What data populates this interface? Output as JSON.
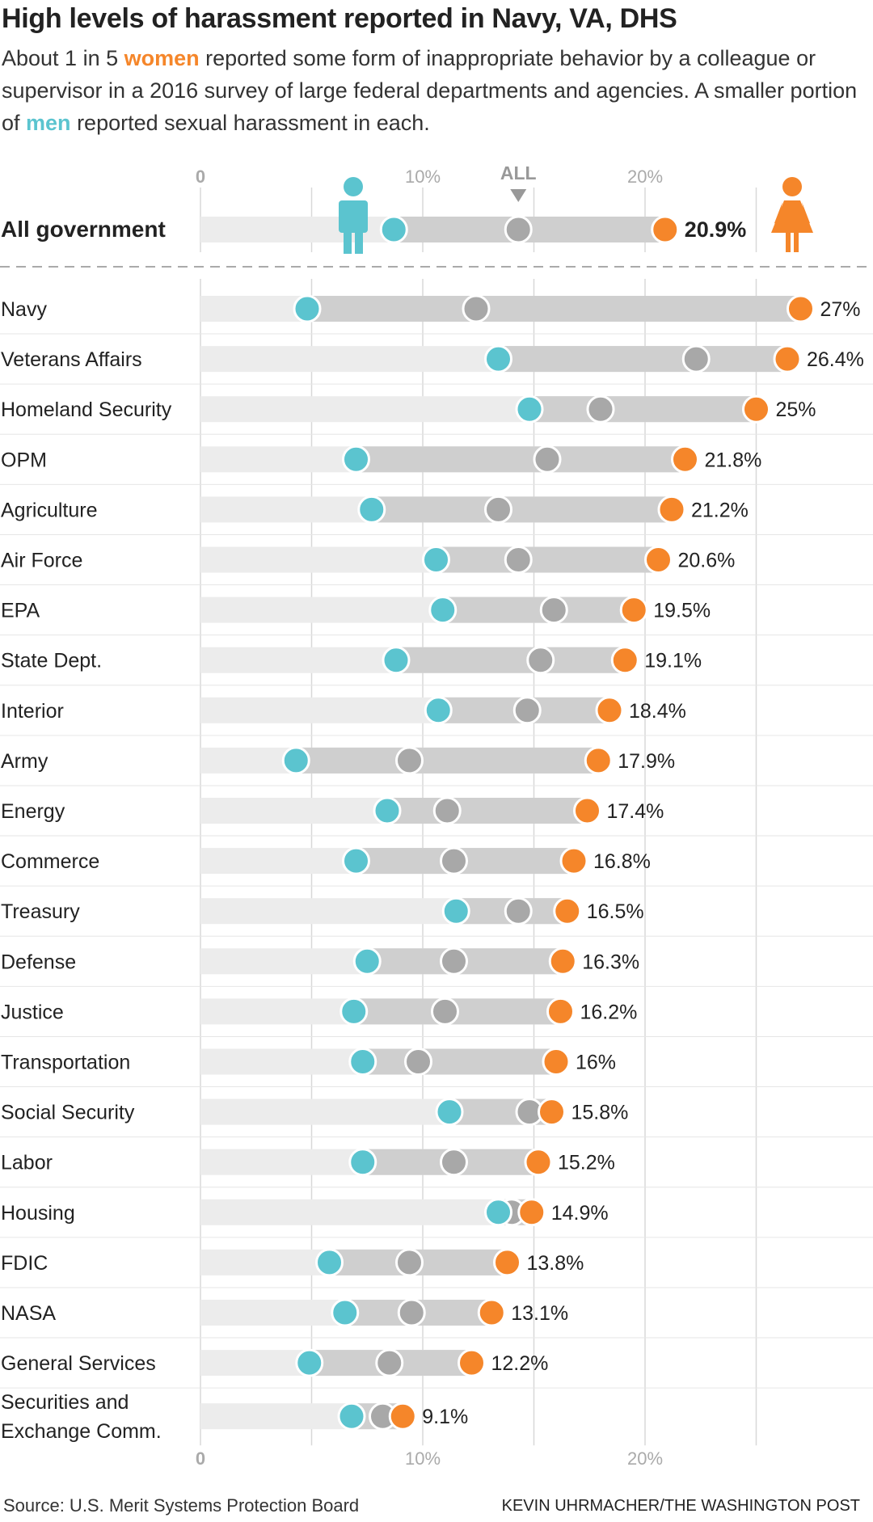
{
  "title": "High levels of harassment reported in Navy, VA, DHS",
  "subtitle": {
    "part1": "About 1 in 5 ",
    "women": "women",
    "part2": " reported some form of inappropriate behavior by a colleague or supervisor in a 2016 survey of large federal departments and agencies. A smaller portion of ",
    "men": "men",
    "part3": " reported sexual harassment in each."
  },
  "colors": {
    "men": "#5bc4cf",
    "women": "#f5862a",
    "all": "#a8a8a8",
    "range_bar": "#cfcfcf",
    "track": "#ececec"
  },
  "icons": {
    "men": "man-icon",
    "women": "woman-icon"
  },
  "chart_data": {
    "type": "dot-range",
    "x_ticks": [
      "0",
      "10%",
      "20%"
    ],
    "x_tick_values": [
      0,
      10,
      20
    ],
    "xlim": [
      0,
      28
    ],
    "all_marker_label": "ALL",
    "summary": {
      "category": "All government",
      "men": 8.7,
      "all": 14.3,
      "women": 20.9,
      "label": "20.9%"
    },
    "rows": [
      {
        "category": "Navy",
        "men": 4.8,
        "all": 12.4,
        "women": 27,
        "label": "27%"
      },
      {
        "category": "Veterans Affairs",
        "men": 13.4,
        "all": 22.3,
        "women": 26.4,
        "label": "26.4%"
      },
      {
        "category": "Homeland Security",
        "men": 14.8,
        "all": 18.0,
        "women": 25,
        "label": "25%"
      },
      {
        "category": "OPM",
        "men": 7.0,
        "all": 15.6,
        "women": 21.8,
        "label": "21.8%"
      },
      {
        "category": "Agriculture",
        "men": 7.7,
        "all": 13.4,
        "women": 21.2,
        "label": "21.2%"
      },
      {
        "category": "Air Force",
        "men": 10.6,
        "all": 14.3,
        "women": 20.6,
        "label": "20.6%"
      },
      {
        "category": "EPA",
        "men": 10.9,
        "all": 15.9,
        "women": 19.5,
        "label": "19.5%"
      },
      {
        "category": "State Dept.",
        "men": 8.8,
        "all": 15.3,
        "women": 19.1,
        "label": "19.1%"
      },
      {
        "category": "Interior",
        "men": 10.7,
        "all": 14.7,
        "women": 18.4,
        "label": "18.4%"
      },
      {
        "category": "Army",
        "men": 4.3,
        "all": 9.4,
        "women": 17.9,
        "label": "17.9%"
      },
      {
        "category": "Energy",
        "men": 8.4,
        "all": 11.1,
        "women": 17.4,
        "label": "17.4%"
      },
      {
        "category": "Commerce",
        "men": 7.0,
        "all": 11.4,
        "women": 16.8,
        "label": "16.8%"
      },
      {
        "category": "Treasury",
        "men": 11.5,
        "all": 14.3,
        "women": 16.5,
        "label": "16.5%"
      },
      {
        "category": "Defense",
        "men": 7.5,
        "all": 11.4,
        "women": 16.3,
        "label": "16.3%"
      },
      {
        "category": "Justice",
        "men": 6.9,
        "all": 11.0,
        "women": 16.2,
        "label": "16.2%"
      },
      {
        "category": "Transportation",
        "men": 7.3,
        "all": 9.8,
        "women": 16,
        "label": "16%"
      },
      {
        "category": "Social Security",
        "men": 11.2,
        "all": 14.8,
        "women": 15.8,
        "label": "15.8%"
      },
      {
        "category": "Labor",
        "men": 7.3,
        "all": 11.4,
        "women": 15.2,
        "label": "15.2%"
      },
      {
        "category": "Housing",
        "men": 13.4,
        "all": 14.0,
        "women": 14.9,
        "label": "14.9%"
      },
      {
        "category": "FDIC",
        "men": 5.8,
        "all": 9.4,
        "women": 13.8,
        "label": "13.8%"
      },
      {
        "category": "NASA",
        "men": 6.5,
        "all": 9.5,
        "women": 13.1,
        "label": "13.1%"
      },
      {
        "category": "General Services",
        "men": 4.9,
        "all": 8.5,
        "women": 12.2,
        "label": "12.2%"
      },
      {
        "category": "Securities and\nExchange Comm.",
        "men": 6.8,
        "all": 8.2,
        "women": 9.1,
        "label": "9.1%"
      }
    ]
  },
  "source": "Source: U.S. Merit Systems Protection Board",
  "credit": "KEVIN UHRMACHER/THE WASHINGTON POST"
}
